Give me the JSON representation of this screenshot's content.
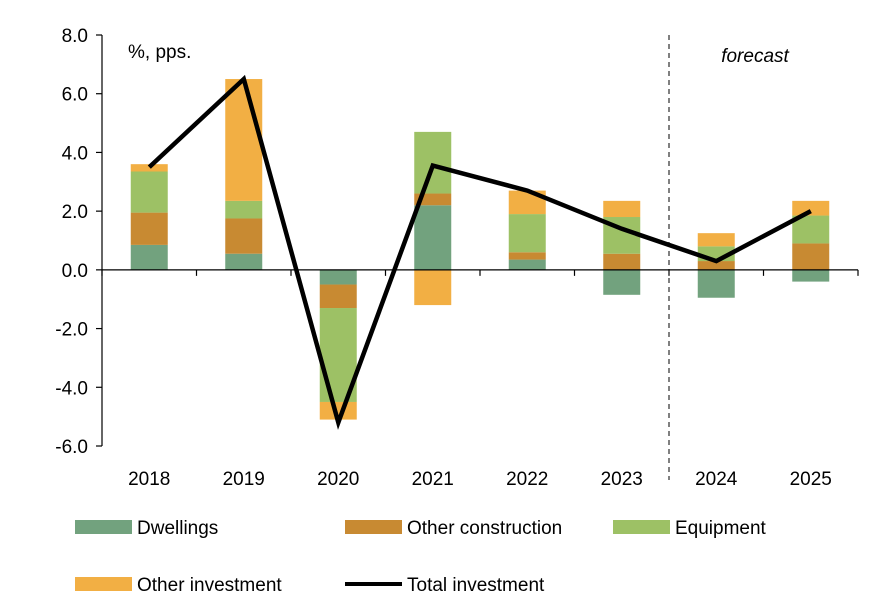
{
  "chart_data": {
    "type": "bar",
    "stacked": true,
    "unit_label": "%, pps.",
    "forecast_label": "forecast",
    "forecast_from": "2024",
    "categories": [
      "2018",
      "2019",
      "2020",
      "2021",
      "2022",
      "2023",
      "2024",
      "2025"
    ],
    "ylim": [
      -6.0,
      8.0
    ],
    "yticks": [
      "8.0",
      "6.0",
      "4.0",
      "2.0",
      "0.0",
      "-2.0",
      "-4.0",
      "-6.0"
    ],
    "ytick_values": [
      8,
      6,
      4,
      2,
      0,
      -2,
      -4,
      -6
    ],
    "series": [
      {
        "name": "Dwellings",
        "kind": "bar",
        "color": "#72A27E",
        "values": [
          0.85,
          0.55,
          -0.5,
          2.2,
          0.35,
          -0.85,
          -0.95,
          -0.4
        ]
      },
      {
        "name": "Other construction",
        "kind": "bar",
        "color": "#C88A32",
        "values": [
          1.1,
          1.2,
          -0.8,
          0.4,
          0.25,
          0.55,
          0.3,
          0.9
        ]
      },
      {
        "name": "Equipment",
        "kind": "bar",
        "color": "#9DC165",
        "values": [
          1.4,
          0.6,
          -3.2,
          2.1,
          1.3,
          1.25,
          0.5,
          0.95
        ]
      },
      {
        "name": "Other investment",
        "kind": "bar",
        "color": "#F2AF44",
        "values": [
          0.25,
          4.15,
          -0.6,
          -1.2,
          0.8,
          0.55,
          0.45,
          0.5
        ]
      },
      {
        "name": "Total investment",
        "kind": "line",
        "color": "#000000",
        "values": [
          3.5,
          6.5,
          -5.2,
          3.55,
          2.7,
          1.4,
          0.3,
          2.0
        ]
      }
    ],
    "legend_position": "bottom"
  }
}
